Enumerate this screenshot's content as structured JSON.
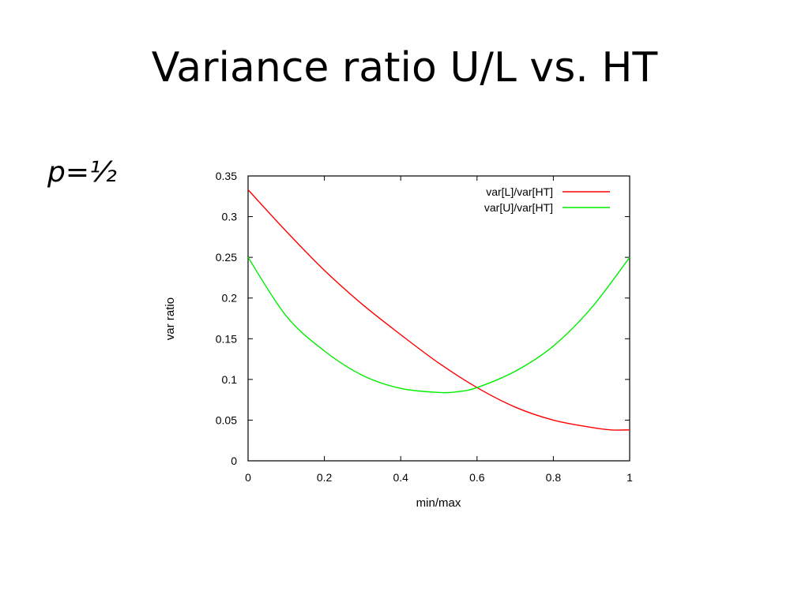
{
  "slide": {
    "title": "Variance ratio U/L vs. HT",
    "param": "p=½"
  },
  "chart_data": {
    "type": "line",
    "title": "",
    "xlabel": "min/max",
    "ylabel": "var ratio",
    "xlim": [
      0,
      1
    ],
    "ylim": [
      0,
      0.35
    ],
    "xticks": [
      "0",
      "0.2",
      "0.4",
      "0.6",
      "0.8",
      "1"
    ],
    "yticks": [
      "0",
      "0.05",
      "0.1",
      "0.15",
      "0.2",
      "0.25",
      "0.3",
      "0.35"
    ],
    "grid": false,
    "legend_position": "top-right",
    "series": [
      {
        "name": "var[L]/var[HT]",
        "color": "#ff0000",
        "x": [
          0,
          0.1,
          0.2,
          0.3,
          0.4,
          0.5,
          0.6,
          0.7,
          0.8,
          0.9,
          0.95,
          1.0
        ],
        "y": [
          0.333,
          0.282,
          0.234,
          0.192,
          0.155,
          0.12,
          0.09,
          0.066,
          0.05,
          0.041,
          0.038,
          0.038
        ]
      },
      {
        "name": "var[U]/var[HT]",
        "color": "#00ee00",
        "x": [
          0,
          0.1,
          0.2,
          0.3,
          0.4,
          0.5,
          0.55,
          0.6,
          0.7,
          0.8,
          0.9,
          1.0
        ],
        "y": [
          0.25,
          0.178,
          0.135,
          0.105,
          0.089,
          0.084,
          0.085,
          0.09,
          0.11,
          0.141,
          0.188,
          0.25
        ]
      }
    ]
  }
}
